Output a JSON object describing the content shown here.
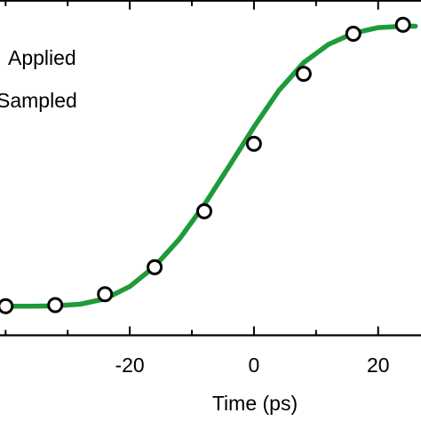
{
  "chart_data": {
    "type": "line",
    "xlabel": "Time (ps)",
    "ylabel": "",
    "xlim": [
      -40.9,
      26.9
    ],
    "ylim": [
      -0.104,
      1.091
    ],
    "x_ticks": [
      -20,
      0,
      20
    ],
    "x_tick_labels": [
      "-20",
      "0",
      "20"
    ],
    "grid": false,
    "legend": {
      "placement": "top-left",
      "entries": [
        "Applied",
        "Sampled"
      ]
    },
    "series": [
      {
        "name": "Applied",
        "kind": "line",
        "color": "#1e9a3a",
        "x": [
          -40,
          -36,
          -32,
          -28,
          -24,
          -20,
          -16,
          -12,
          -8,
          -4,
          0,
          4,
          8,
          12,
          16,
          20,
          24,
          26
        ],
        "y": [
          0.0,
          0.0,
          0.001,
          0.007,
          0.026,
          0.07,
          0.142,
          0.24,
          0.362,
          0.5,
          0.64,
          0.77,
          0.87,
          0.935,
          0.975,
          0.995,
          1.0,
          1.0
        ]
      },
      {
        "name": "Sampled",
        "kind": "scatter",
        "color": "#000000",
        "x": [
          -40,
          -32,
          -24,
          -16,
          -8,
          0,
          8,
          16,
          24
        ],
        "y": [
          0.0,
          0.004,
          0.043,
          0.139,
          0.339,
          0.58,
          0.83,
          0.973,
          1.005
        ]
      }
    ]
  }
}
